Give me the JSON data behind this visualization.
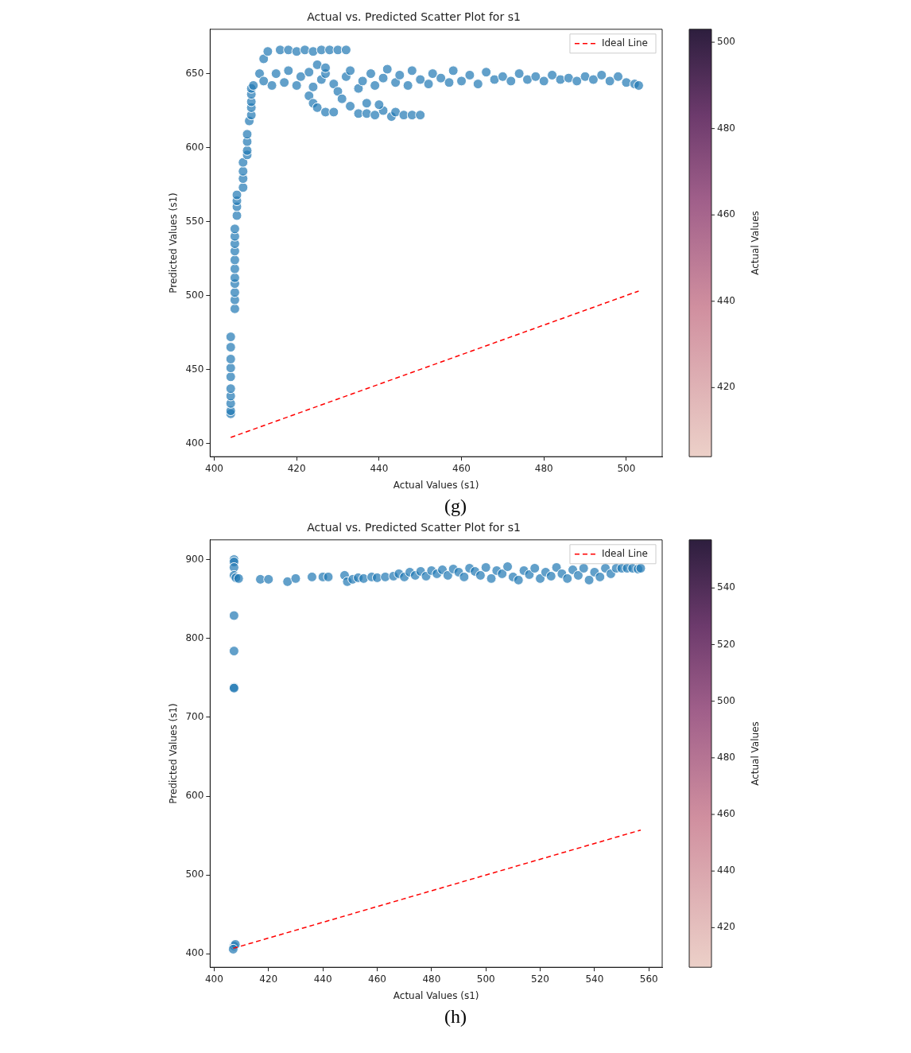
{
  "chart_data": [
    {
      "type": "scatter",
      "title": "Actual vs. Predicted Scatter Plot for s1",
      "xlabel": "Actual Values (s1)",
      "ylabel": "Predicted Values (s1)",
      "clabel": "Actual Values",
      "annotations": [
        "(g)"
      ],
      "xlim": [
        399,
        508.7
      ],
      "xticks": [
        400,
        420,
        440,
        460,
        480,
        500
      ],
      "ylim": [
        391,
        680
      ],
      "yticks": [
        400,
        450,
        500,
        550,
        600,
        650
      ],
      "clim": [
        404,
        503
      ],
      "cticks": [
        420,
        440,
        460,
        480,
        500
      ],
      "legend": "top right",
      "marker": "circle",
      "series": [
        {
          "color": "#1f77b4",
          "x": [
            404,
            404,
            404,
            404,
            404,
            404,
            404,
            404,
            404,
            404,
            405,
            405,
            405,
            405,
            405,
            405,
            405,
            405,
            405,
            405,
            405,
            405.5,
            405.5,
            405.5,
            405.5,
            407,
            407,
            407,
            407,
            408,
            408,
            408,
            408,
            408.5,
            409,
            409,
            409,
            409,
            409,
            409.5,
            411,
            412,
            414,
            415,
            417,
            418,
            420,
            421,
            423,
            424,
            426,
            427,
            429,
            430,
            432,
            433,
            435,
            436,
            438,
            439,
            441,
            442,
            444,
            445,
            447,
            448,
            450,
            452,
            453,
            455,
            457,
            458,
            460,
            462,
            464,
            466,
            468,
            470,
            472,
            474,
            476,
            478,
            480,
            482,
            484,
            486,
            488,
            490,
            492,
            494,
            496,
            498,
            500,
            502,
            503,
            412,
            413,
            416,
            418,
            420,
            422,
            424,
            426,
            428,
            430,
            432,
            425,
            427,
            423,
            424,
            425,
            427,
            429,
            431,
            433,
            435,
            437,
            439,
            441,
            443,
            444,
            446,
            448,
            450,
            437,
            440
          ],
          "values": [
            420,
            422,
            427,
            432,
            437,
            445,
            451,
            457,
            465,
            472,
            491,
            497,
            502,
            508,
            512,
            518,
            524,
            530,
            535,
            540,
            545,
            554,
            560,
            564,
            568,
            573,
            579,
            584,
            590,
            595,
            598,
            604,
            609,
            618,
            622,
            627,
            631,
            636,
            640,
            642,
            650,
            645,
            642,
            650,
            644,
            652,
            642,
            648,
            651,
            641,
            646,
            650,
            643,
            638,
            648,
            652,
            640,
            645,
            650,
            642,
            647,
            653,
            644,
            649,
            642,
            652,
            646,
            643,
            650,
            647,
            644,
            652,
            645,
            649,
            643,
            651,
            646,
            648,
            645,
            650,
            646,
            648,
            645,
            649,
            646,
            647,
            645,
            648,
            646,
            649,
            645,
            648,
            644,
            643,
            642,
            660,
            665,
            666,
            666,
            665,
            666,
            665,
            666,
            666,
            666,
            666,
            656,
            654,
            635,
            630,
            627,
            624,
            624,
            633,
            628,
            623,
            623,
            622,
            625,
            621,
            624,
            622,
            622,
            622,
            630,
            629
          ]
        },
        {
          "type": "line",
          "name": "Ideal Line",
          "color": "#ff0000",
          "line_style": "dashed",
          "marker": "none",
          "x": [
            404,
            503
          ],
          "values": [
            404,
            503
          ]
        }
      ]
    },
    {
      "type": "scatter",
      "title": "Actual vs. Predicted Scatter Plot for s1",
      "xlabel": "Actual Values (s1)",
      "ylabel": "Predicted Values (s1)",
      "clabel": "Actual Values",
      "annotations": [
        "(h)"
      ],
      "xlim": [
        398.5,
        564.9
      ],
      "xticks": [
        400,
        420,
        440,
        460,
        480,
        500,
        520,
        540,
        560
      ],
      "ylim": [
        383,
        925
      ],
      "yticks": [
        400,
        500,
        600,
        700,
        800,
        900
      ],
      "clim": [
        406,
        557
      ],
      "cticks": [
        420,
        440,
        460,
        480,
        500,
        520,
        540
      ],
      "legend": "top right",
      "marker": "circle",
      "series": [
        {
          "color": "#1f77b4",
          "x": [
            407.3,
            407.3,
            407.3,
            407.3,
            408,
            409,
            407.3,
            407.3,
            407.3,
            407.3,
            407.3,
            407.8,
            407,
            417,
            420,
            427,
            430,
            436,
            440,
            442,
            448,
            449,
            451,
            453,
            455,
            458,
            460,
            463,
            466,
            468,
            470,
            472,
            474,
            476,
            478,
            480,
            482,
            484,
            486,
            488,
            490,
            492,
            494,
            496,
            498,
            500,
            502,
            504,
            506,
            508,
            510,
            512,
            514,
            516,
            518,
            520,
            522,
            524,
            526,
            528,
            530,
            532,
            534,
            536,
            538,
            540,
            542,
            544,
            546,
            548,
            550,
            552,
            554,
            556,
            557
          ],
          "values": [
            900,
            897,
            890,
            880,
            877,
            876,
            829,
            784,
            738,
            737,
            410,
            412,
            406,
            875,
            875,
            872,
            876,
            878,
            878,
            878,
            880,
            872,
            875,
            877,
            876,
            878,
            877,
            878,
            879,
            882,
            878,
            884,
            880,
            885,
            879,
            886,
            882,
            887,
            880,
            888,
            884,
            878,
            889,
            885,
            880,
            890,
            876,
            886,
            882,
            891,
            878,
            874,
            886,
            881,
            889,
            876,
            884,
            879,
            890,
            882,
            876,
            887,
            880,
            889,
            874,
            884,
            878,
            889,
            882,
            889,
            889,
            889,
            889,
            888,
            889
          ]
        },
        {
          "type": "line",
          "name": "Ideal Line",
          "color": "#ff0000",
          "line_style": "dashed",
          "marker": "none",
          "x": [
            407,
            557
          ],
          "values": [
            407,
            557
          ]
        }
      ]
    }
  ]
}
